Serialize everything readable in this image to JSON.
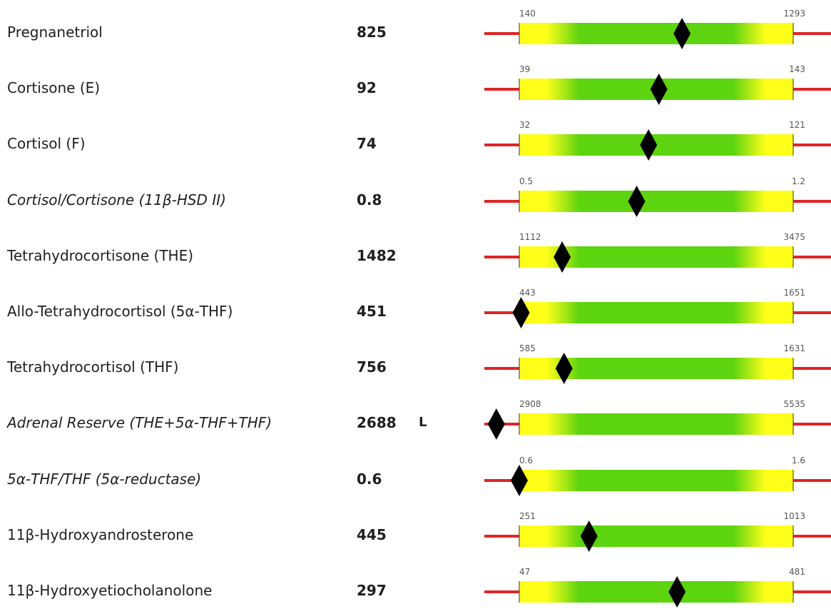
{
  "colors": {
    "out_of_range": "#e02424",
    "edge": "#ffff1a",
    "center": "#5cd410",
    "marker": "#000000"
  },
  "chart_data": {
    "type": "range_indicator",
    "rows": [
      {
        "name": "Pregnanetriol",
        "value": 825,
        "value_text": "825",
        "flag": "",
        "low": 140,
        "high": 1293,
        "low_text": "140",
        "high_text": "1293",
        "italic": false
      },
      {
        "name": "Cortisone (E)",
        "value": 92,
        "value_text": "92",
        "flag": "",
        "low": 39,
        "high": 143,
        "low_text": "39",
        "high_text": "143",
        "italic": false
      },
      {
        "name": "Cortisol (F)",
        "value": 74,
        "value_text": "74",
        "flag": "",
        "low": 32,
        "high": 121,
        "low_text": "32",
        "high_text": "121",
        "italic": false
      },
      {
        "name": "Cortisol/Cortisone (11β-HSD II)",
        "value": 0.8,
        "value_text": "0.8",
        "flag": "",
        "low": 0.5,
        "high": 1.2,
        "low_text": "0.5",
        "high_text": "1.2",
        "italic": true
      },
      {
        "name": "Tetrahydrocortisone (THE)",
        "value": 1482,
        "value_text": "1482",
        "flag": "",
        "low": 1112,
        "high": 3475,
        "low_text": "1112",
        "high_text": "3475",
        "italic": false
      },
      {
        "name": "Allo-Tetrahydrocortisol (5α-THF)",
        "value": 451,
        "value_text": "451",
        "flag": "",
        "low": 443,
        "high": 1651,
        "low_text": "443",
        "high_text": "1651",
        "italic": false
      },
      {
        "name": "Tetrahydrocortisol (THF)",
        "value": 756,
        "value_text": "756",
        "flag": "",
        "low": 585,
        "high": 1631,
        "low_text": "585",
        "high_text": "1631",
        "italic": false
      },
      {
        "name": "Adrenal Reserve (THE+5α-THF+THF)",
        "value": 2688,
        "value_text": "2688",
        "flag": "L",
        "low": 2908,
        "high": 5535,
        "low_text": "2908",
        "high_text": "5535",
        "italic": true
      },
      {
        "name": "5α-THF/THF (5α-reductase)",
        "value": 0.6,
        "value_text": "0.6",
        "flag": "",
        "low": 0.6,
        "high": 1.6,
        "low_text": "0.6",
        "high_text": "1.6",
        "italic": true
      },
      {
        "name": "11β-Hydroxyandrosterone",
        "value": 445,
        "value_text": "445",
        "flag": "",
        "low": 251,
        "high": 1013,
        "low_text": "251",
        "high_text": "1013",
        "italic": false
      },
      {
        "name": "11β-Hydroxyetiocholanolone",
        "value": 297,
        "value_text": "297",
        "flag": "",
        "low": 47,
        "high": 481,
        "low_text": "47",
        "high_text": "481",
        "italic": false
      }
    ]
  }
}
